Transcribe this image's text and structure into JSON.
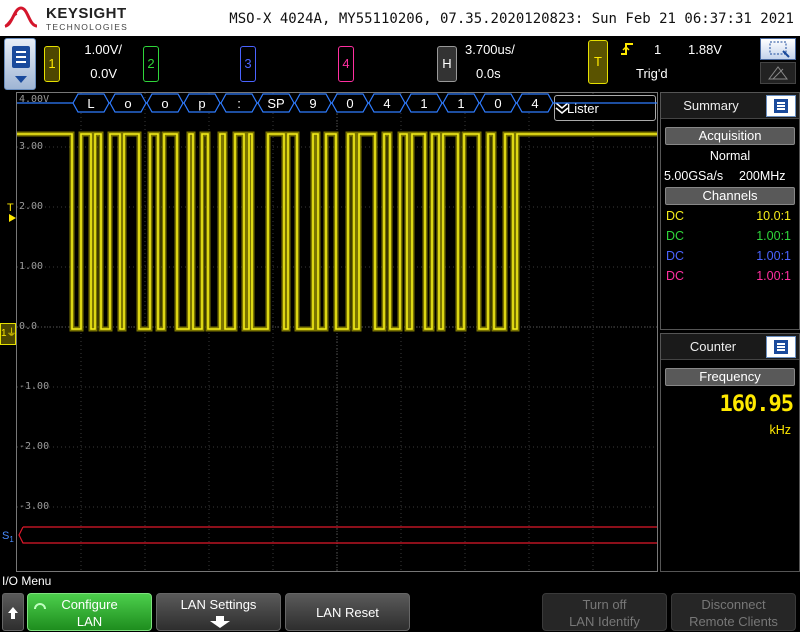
{
  "header": {
    "brand": "KEYSIGHT",
    "brand_sub": "TECHNOLOGIES",
    "device_info": "MSO-X 4024A, MY55110206, 07.35.2020120823: Sun Feb 21 06:37:31 2021"
  },
  "channels": [
    {
      "num": "1",
      "scale": "1.00V/",
      "offset": "0.0V",
      "color": "#f5ee1a"
    },
    {
      "num": "2",
      "color": "#2fd63a"
    },
    {
      "num": "3",
      "color": "#4a63ff"
    },
    {
      "num": "4",
      "color": "#ff2fa0"
    }
  ],
  "horizontal": {
    "key": "H",
    "scale": "3.700us/",
    "delay": "0.0s"
  },
  "trigger": {
    "key": "T",
    "source": "1",
    "level": "1.88V",
    "status": "Trig'd",
    "edge_icon": "rising-edge-icon"
  },
  "graticule": {
    "v_labels": [
      "4.00V",
      "3.00",
      "2.00",
      "1.00",
      "0.0",
      "-1.00",
      "-2.00",
      "-3.00"
    ],
    "lister_label": "Lister"
  },
  "decode": {
    "symbols": [
      "L",
      "o",
      "o",
      "p",
      ":",
      "SP",
      "9",
      "0",
      "4",
      "1",
      "1",
      "0",
      "4"
    ]
  },
  "summary": {
    "title": "Summary",
    "acquisition_label": "Acquisition",
    "mode": "Normal",
    "sample_rate": "5.00GSa/s",
    "bandwidth": "200MHz",
    "channels_label": "Channels",
    "channel_rows": [
      {
        "coupling": "DC",
        "probe": "10.0:1",
        "color": "#f5ee1a"
      },
      {
        "coupling": "DC",
        "probe": "1.00:1",
        "color": "#2fd63a"
      },
      {
        "coupling": "DC",
        "probe": "1.00:1",
        "color": "#4a63ff"
      },
      {
        "coupling": "DC",
        "probe": "1.00:1",
        "color": "#ff2fa0"
      }
    ]
  },
  "counter": {
    "title": "Counter",
    "frequency_label": "Frequency",
    "value": "160.95",
    "unit": "kHz"
  },
  "menu": {
    "title": "I/O Menu",
    "softkeys": [
      {
        "line1": "Configure",
        "line2": "LAN",
        "state": "active"
      },
      {
        "line1": "LAN Settings",
        "line2": "",
        "state": "normal"
      },
      {
        "line1": "LAN Reset",
        "line2": "",
        "state": "normal"
      },
      {
        "line1": "Turn off",
        "line2": "LAN Identify",
        "state": "disabled"
      },
      {
        "line1": "Disconnect",
        "line2": "Remote Clients",
        "state": "disabled"
      }
    ]
  }
}
